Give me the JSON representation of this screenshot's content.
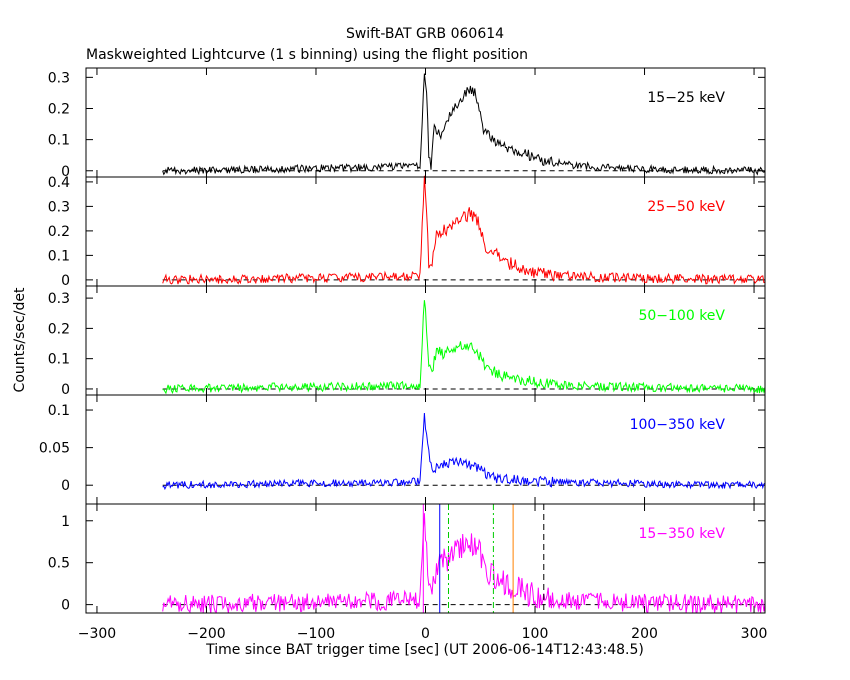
{
  "chart_data": {
    "type": "line",
    "title": "Swift-BAT GRB 060614",
    "subtitle": "Maskweighted Lightcurve (1 s binning) using the flight position",
    "xlabel": "Time since BAT trigger time [sec] (UT 2006-06-14T12:43:48.5)",
    "ylabel": "Counts/sec/det",
    "xlim": [
      -310,
      310
    ],
    "xticks": [
      -300,
      -200,
      -100,
      0,
      100,
      200,
      300
    ],
    "grid": false,
    "panels": [
      {
        "name": "15−25 keV",
        "color": "#000000",
        "ylim": [
          -0.02,
          0.33
        ],
        "yticks": [
          {
            "v": 0,
            "t": "0"
          },
          {
            "v": 0.1,
            "t": "0.1"
          },
          {
            "v": 0.2,
            "t": "0.2"
          },
          {
            "v": 0.3,
            "t": "0.3"
          }
        ],
        "points": [
          [
            -240,
            0.0
          ],
          [
            -150,
            0.005
          ],
          [
            -60,
            0.01
          ],
          [
            -5,
            0.015
          ],
          [
            -1,
            0.31
          ],
          [
            1,
            0.25
          ],
          [
            3,
            0.05
          ],
          [
            5,
            0.02
          ],
          [
            8,
            0.15
          ],
          [
            14,
            0.1
          ],
          [
            20,
            0.16
          ],
          [
            30,
            0.22
          ],
          [
            40,
            0.26
          ],
          [
            46,
            0.25
          ],
          [
            52,
            0.14
          ],
          [
            65,
            0.09
          ],
          [
            80,
            0.07
          ],
          [
            95,
            0.05
          ],
          [
            110,
            0.03
          ],
          [
            140,
            0.015
          ],
          [
            200,
            0.005
          ],
          [
            310,
            0.0
          ]
        ]
      },
      {
        "name": "25−50 keV",
        "color": "#ff0000",
        "ylim": [
          -0.025,
          0.42
        ],
        "yticks": [
          {
            "v": 0,
            "t": "0"
          },
          {
            "v": 0.1,
            "t": "0.1"
          },
          {
            "v": 0.2,
            "t": "0.2"
          },
          {
            "v": 0.3,
            "t": "0.3"
          },
          {
            "v": 0.4,
            "t": "0.4"
          }
        ],
        "points": [
          [
            -240,
            0.0
          ],
          [
            -150,
            0.005
          ],
          [
            -60,
            0.01
          ],
          [
            -5,
            0.015
          ],
          [
            -1,
            0.4
          ],
          [
            1,
            0.3
          ],
          [
            3,
            0.07
          ],
          [
            6,
            0.05
          ],
          [
            10,
            0.2
          ],
          [
            20,
            0.2
          ],
          [
            30,
            0.24
          ],
          [
            40,
            0.27
          ],
          [
            48,
            0.24
          ],
          [
            55,
            0.14
          ],
          [
            65,
            0.1
          ],
          [
            80,
            0.06
          ],
          [
            100,
            0.03
          ],
          [
            130,
            0.015
          ],
          [
            200,
            0.005
          ],
          [
            310,
            0.0
          ]
        ]
      },
      {
        "name": "50−100 keV",
        "color": "#00ff00",
        "ylim": [
          -0.02,
          0.34
        ],
        "yticks": [
          {
            "v": 0,
            "t": "0"
          },
          {
            "v": 0.1,
            "t": "0.1"
          },
          {
            "v": 0.2,
            "t": "0.2"
          },
          {
            "v": 0.3,
            "t": "0.3"
          }
        ],
        "points": [
          [
            -240,
            0.0
          ],
          [
            -150,
            0.005
          ],
          [
            -60,
            0.008
          ],
          [
            -5,
            0.01
          ],
          [
            -1,
            0.3
          ],
          [
            1,
            0.2
          ],
          [
            3,
            0.08
          ],
          [
            6,
            0.06
          ],
          [
            10,
            0.12
          ],
          [
            20,
            0.12
          ],
          [
            30,
            0.14
          ],
          [
            40,
            0.14
          ],
          [
            46,
            0.13
          ],
          [
            55,
            0.07
          ],
          [
            70,
            0.04
          ],
          [
            100,
            0.02
          ],
          [
            140,
            0.01
          ],
          [
            200,
            0.005
          ],
          [
            310,
            0.0
          ]
        ]
      },
      {
        "name": "100−350 keV",
        "color": "#0000ff",
        "ylim": [
          -0.025,
          0.12
        ],
        "yticks": [
          {
            "v": 0,
            "t": "0"
          },
          {
            "v": 0.05,
            "t": "0.05"
          },
          {
            "v": 0.1,
            "t": "0.1"
          }
        ],
        "points": [
          [
            -240,
            0.0
          ],
          [
            -150,
            0.002
          ],
          [
            -60,
            0.003
          ],
          [
            -5,
            0.005
          ],
          [
            -1,
            0.09
          ],
          [
            1,
            0.07
          ],
          [
            4,
            0.03
          ],
          [
            8,
            0.02
          ],
          [
            20,
            0.03
          ],
          [
            30,
            0.03
          ],
          [
            45,
            0.025
          ],
          [
            60,
            0.01
          ],
          [
            100,
            0.005
          ],
          [
            200,
            0.002
          ],
          [
            310,
            0.0
          ]
        ]
      },
      {
        "name": "15−350 keV",
        "color": "#ff00ff",
        "ylim": [
          -0.1,
          1.2
        ],
        "yticks": [
          {
            "v": 0,
            "t": "0"
          },
          {
            "v": 0.5,
            "t": "0.5"
          },
          {
            "v": 1,
            "t": "1"
          }
        ],
        "points": [
          [
            -240,
            0.0
          ],
          [
            -150,
            0.02
          ],
          [
            -60,
            0.04
          ],
          [
            -5,
            0.05
          ],
          [
            -1,
            1.0
          ],
          [
            1,
            0.8
          ],
          [
            3,
            0.2
          ],
          [
            6,
            0.15
          ],
          [
            10,
            0.45
          ],
          [
            20,
            0.55
          ],
          [
            30,
            0.65
          ],
          [
            40,
            0.75
          ],
          [
            48,
            0.7
          ],
          [
            55,
            0.4
          ],
          [
            65,
            0.3
          ],
          [
            80,
            0.2
          ],
          [
            100,
            0.1
          ],
          [
            130,
            0.05
          ],
          [
            200,
            0.02
          ],
          [
            310,
            0.0
          ]
        ],
        "markers": [
          {
            "x": -2,
            "color": "#ff00ff",
            "dash": "solid"
          },
          {
            "x": 13,
            "color": "#0000ff",
            "dash": "solid"
          },
          {
            "x": 21,
            "color": "#00cc00",
            "dash": "dashdot"
          },
          {
            "x": 62,
            "color": "#00cc00",
            "dash": "dashdot"
          },
          {
            "x": 80,
            "color": "#ff8000",
            "dash": "solid"
          },
          {
            "x": 108,
            "color": "#000000",
            "dash": "dashed"
          }
        ]
      }
    ]
  }
}
